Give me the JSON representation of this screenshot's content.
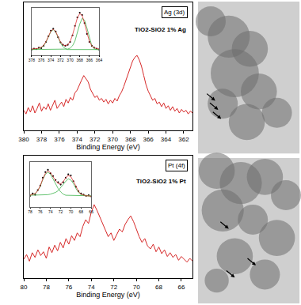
{
  "chart_data": [
    {
      "type": "line",
      "x_label": "Binding Energy (eV)",
      "annotations": [
        "Ag (3d)",
        "TiO2-SiO2 1% Ag"
      ],
      "xlim": [
        380,
        361
      ],
      "xticks": [
        380,
        378,
        376,
        374,
        372,
        370,
        368,
        366,
        364,
        362
      ],
      "ylim": [
        0,
        140
      ],
      "tick_labels": "x",
      "grid": false,
      "x": [
        380,
        379.75,
        379.5,
        379.25,
        379,
        378.75,
        378.5,
        378.25,
        378,
        377.75,
        377.5,
        377.25,
        377,
        376.75,
        376.5,
        376.25,
        376,
        375.75,
        375.5,
        375.25,
        375,
        374.75,
        374.5,
        374.25,
        374,
        373.75,
        373.5,
        373.25,
        373,
        372.75,
        372.5,
        372.25,
        372,
        371.75,
        371.5,
        371.25,
        371,
        370.75,
        370.5,
        370.25,
        370,
        369.75,
        369.5,
        369.25,
        369,
        368.75,
        368.5,
        368.25,
        368,
        367.75,
        367.5,
        367.25,
        367,
        366.75,
        366.5,
        366.25,
        366,
        365.75,
        365.5,
        365.25,
        365,
        364.75,
        364.5,
        364.25,
        364,
        363.75,
        363.5,
        363.25,
        363,
        362.75,
        362.5,
        362.25,
        362,
        361.75,
        361.5,
        361.25,
        361
      ],
      "series": [
        {
          "color": "#d62828",
          "line_style": "solid",
          "values": [
            22,
            18,
            25,
            20,
            27,
            19,
            24,
            30,
            21,
            26,
            23,
            29,
            22,
            27,
            33,
            24,
            28,
            31,
            26,
            34,
            30,
            36,
            33,
            41,
            44,
            50,
            55,
            60,
            57,
            53,
            45,
            40,
            36,
            38,
            33,
            35,
            31,
            34,
            29,
            33,
            30,
            35,
            32,
            38,
            42,
            48,
            55,
            63,
            70,
            76,
            80,
            82,
            77,
            70,
            60,
            50,
            43,
            38,
            33,
            35,
            29,
            31,
            26,
            30,
            24,
            27,
            22,
            26,
            21,
            24,
            19,
            23,
            20,
            22,
            18,
            21,
            19
          ]
        }
      ]
    },
    {
      "type": "line",
      "xlim": [
        378,
        364
      ],
      "xticks": [
        378,
        376,
        374,
        372,
        370,
        368,
        366,
        364
      ],
      "ylim": [
        0,
        100
      ],
      "tick_labels": "x",
      "grid": false,
      "x": [
        378,
        377.5,
        377,
        376.5,
        376,
        375.5,
        375,
        374.5,
        374,
        373.5,
        373,
        372.5,
        372,
        371.5,
        371,
        370.5,
        370,
        369.5,
        369,
        368.5,
        368,
        367.5,
        367,
        366.5,
        366,
        365.5,
        365,
        364.5,
        364
      ],
      "series": [
        {
          "type": "scatter",
          "marker": "circle",
          "color": "#000000",
          "values": [
            12,
            14,
            13,
            16,
            15,
            20,
            28,
            40,
            52,
            56,
            50,
            38,
            27,
            22,
            20,
            22,
            28,
            42,
            62,
            80,
            90,
            85,
            68,
            45,
            28,
            20,
            16,
            14,
            12
          ]
        },
        {
          "type": "line",
          "line_style": "solid",
          "color": "#3cb44b",
          "values": [
            12,
            12,
            13,
            14,
            16,
            20,
            28,
            39,
            50,
            54,
            49,
            38,
            26,
            18,
            14,
            12,
            12,
            12,
            12,
            12,
            12,
            12,
            12,
            12,
            12,
            12,
            12,
            12,
            12
          ]
        },
        {
          "type": "line",
          "line_style": "solid",
          "color": "#3cb44b",
          "values": [
            12,
            12,
            12,
            12,
            12,
            12,
            12,
            12,
            12,
            12,
            12,
            12,
            12,
            12,
            12,
            13,
            15,
            20,
            30,
            48,
            66,
            78,
            74,
            57,
            36,
            20,
            14,
            12,
            12
          ]
        },
        {
          "type": "line",
          "line_style": "solid",
          "color": "#e03030",
          "values": [
            13,
            13,
            14,
            15,
            17,
            21,
            29,
            40,
            51,
            55,
            50,
            39,
            28,
            22,
            20,
            22,
            29,
            43,
            62,
            79,
            88,
            84,
            67,
            46,
            29,
            20,
            16,
            14,
            13
          ]
        }
      ]
    },
    {
      "type": "line",
      "x_label": "Binding Energy (eV)",
      "annotations": [
        "Pt (4f)",
        "TiO2-SiO2 1% Pt"
      ],
      "xlim": [
        80,
        65
      ],
      "xticks": [
        80,
        78,
        76,
        74,
        72,
        70,
        68,
        66
      ],
      "ylim": [
        0,
        130
      ],
      "tick_labels": "x",
      "grid": false,
      "x": [
        80,
        79.75,
        79.5,
        79.25,
        79,
        78.75,
        78.5,
        78.25,
        78,
        77.75,
        77.5,
        77.25,
        77,
        76.75,
        76.5,
        76.25,
        76,
        75.75,
        75.5,
        75.25,
        75,
        74.75,
        74.5,
        74.25,
        74,
        73.75,
        73.5,
        73.25,
        73,
        72.75,
        72.5,
        72.25,
        72,
        71.75,
        71.5,
        71.25,
        71,
        70.75,
        70.5,
        70.25,
        70,
        69.75,
        69.5,
        69.25,
        69,
        68.75,
        68.5,
        68.25,
        68,
        67.75,
        67.5,
        67.25,
        67,
        66.75,
        66.5,
        66.25,
        66,
        65.75,
        65.5,
        65.25,
        65
      ],
      "series": [
        {
          "color": "#d62828",
          "line_style": "solid",
          "values": [
            20,
            25,
            18,
            27,
            22,
            30,
            24,
            28,
            21,
            33,
            27,
            35,
            29,
            38,
            32,
            42,
            36,
            45,
            40,
            48,
            44,
            55,
            62,
            58,
            70,
            78,
            72,
            65,
            58,
            50,
            44,
            48,
            40,
            46,
            52,
            49,
            57,
            62,
            66,
            60,
            52,
            44,
            38,
            42,
            34,
            31,
            36,
            28,
            33,
            26,
            30,
            23,
            27,
            22,
            25,
            19,
            23,
            20,
            17,
            21,
            18
          ]
        }
      ]
    },
    {
      "type": "line",
      "xlim": [
        78,
        66
      ],
      "xticks": [
        78,
        76,
        74,
        72,
        70,
        68,
        66
      ],
      "ylim": [
        0,
        80
      ],
      "tick_labels": "x",
      "grid": false,
      "x": [
        78,
        77.5,
        77,
        76.5,
        76,
        75.5,
        75,
        74.5,
        74,
        73.5,
        73,
        72.5,
        72,
        71.5,
        71,
        70.5,
        70,
        69.5,
        69,
        68.5,
        68,
        67.5,
        67,
        66.5,
        66
      ],
      "series": [
        {
          "type": "scatter",
          "marker": "circle",
          "color": "#000000",
          "values": [
            20,
            24,
            22,
            30,
            38,
            52,
            62,
            66,
            60,
            55,
            48,
            44,
            40,
            44,
            52,
            58,
            56,
            46,
            36,
            28,
            24,
            22,
            20,
            21,
            19
          ]
        },
        {
          "type": "line",
          "line_style": "solid",
          "color": "#3cb44b",
          "values": [
            21,
            22,
            24,
            29,
            37,
            49,
            58,
            62,
            58,
            50,
            41,
            33,
            27,
            23,
            21,
            21,
            20,
            20,
            20,
            20,
            20,
            20,
            20,
            20,
            20
          ]
        },
        {
          "type": "line",
          "line_style": "solid",
          "color": "#3cb44b",
          "values": [
            21,
            21,
            21,
            21,
            21,
            21,
            22,
            22,
            23,
            24,
            26,
            29,
            34,
            40,
            46,
            50,
            48,
            42,
            33,
            26,
            22,
            21,
            20,
            20,
            19
          ]
        },
        {
          "type": "line",
          "line_style": "solid",
          "color": "#e03030",
          "values": [
            21,
            22,
            24,
            29,
            38,
            50,
            60,
            64,
            61,
            54,
            47,
            42,
            41,
            45,
            52,
            56,
            54,
            46,
            36,
            28,
            23,
            21,
            20,
            20,
            19
          ]
        }
      ]
    }
  ]
}
